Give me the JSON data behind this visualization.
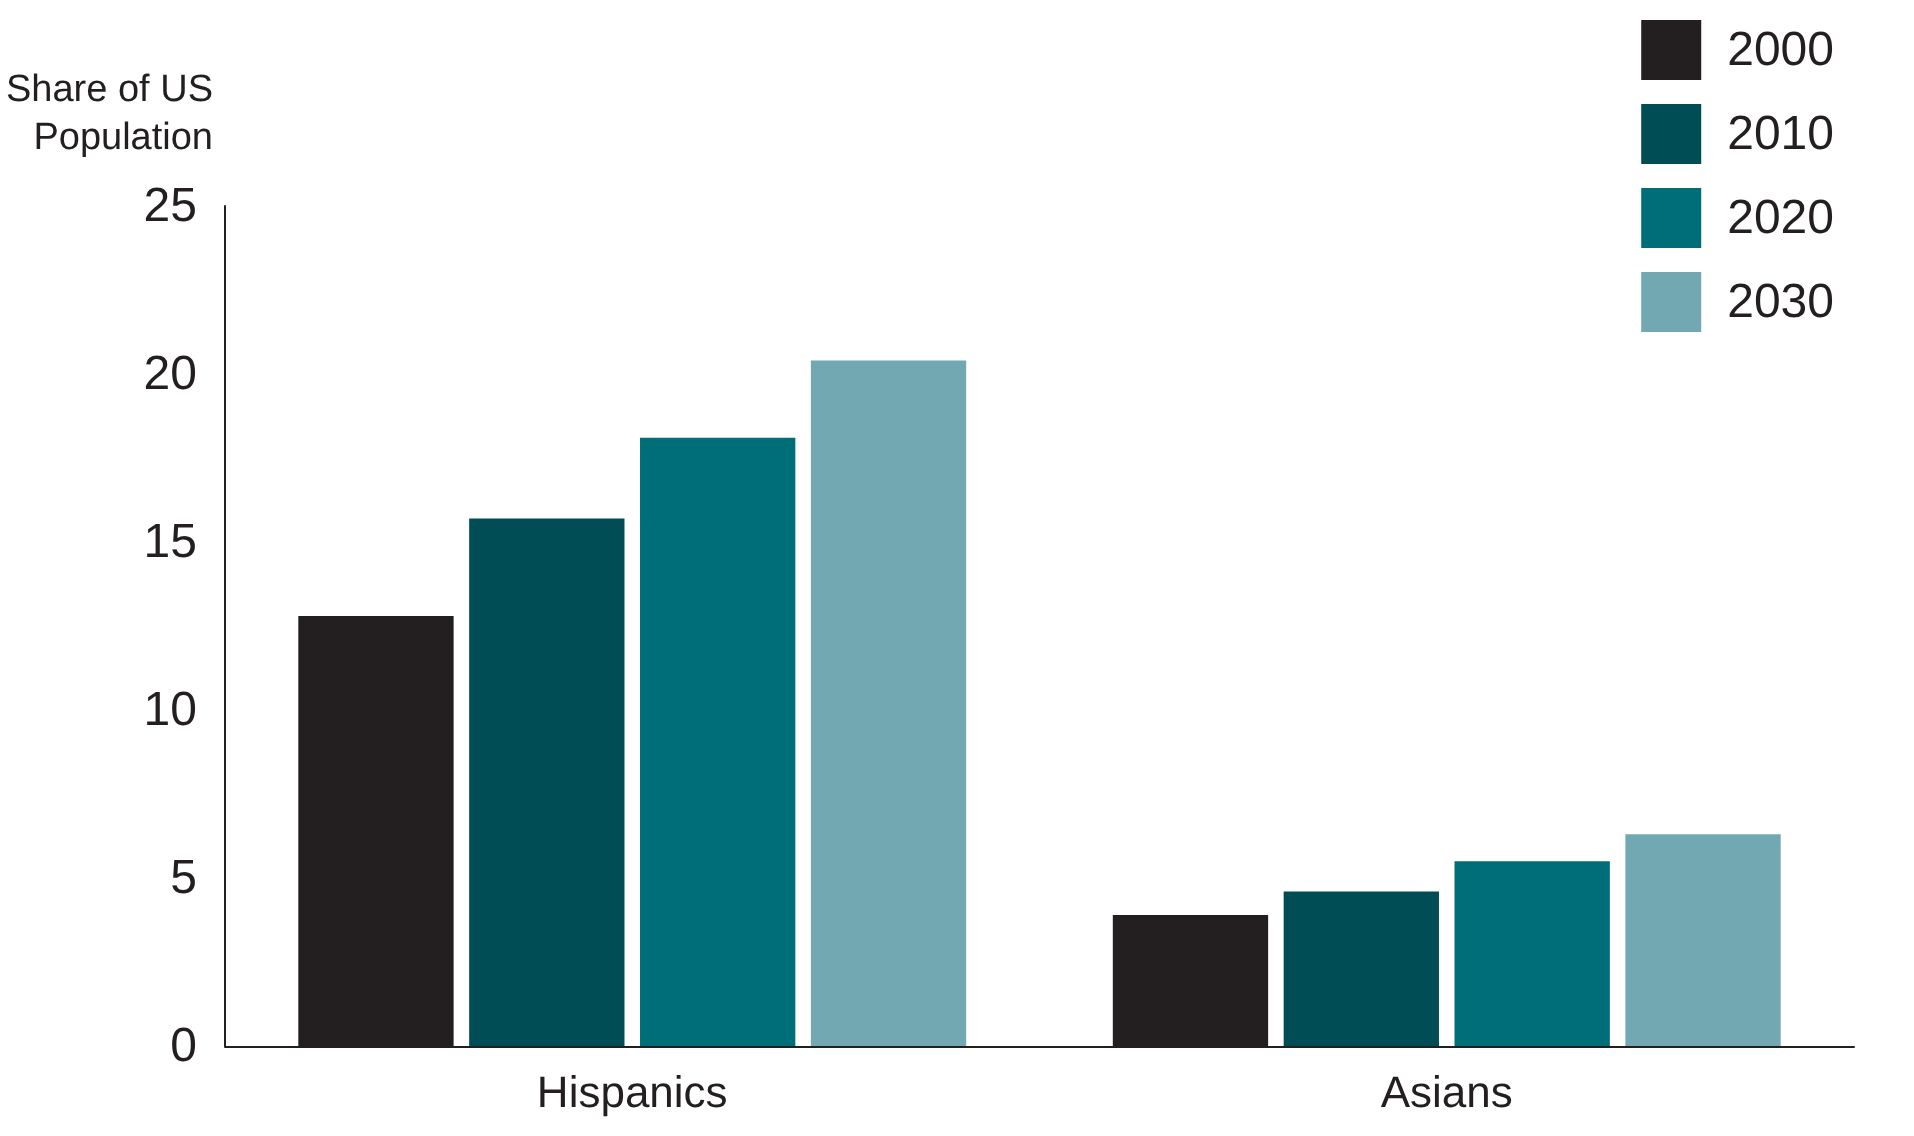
{
  "chart_data": {
    "type": "bar",
    "ylabel": "Share of US\nPopulation",
    "categories": [
      "Hispanics",
      "Asians"
    ],
    "series": [
      {
        "name": "2000",
        "color": "#231f20",
        "values": [
          12.8,
          3.9
        ]
      },
      {
        "name": "2010",
        "color": "#004d56",
        "values": [
          15.7,
          4.6
        ]
      },
      {
        "name": "2020",
        "color": "#006e78",
        "values": [
          18.1,
          5.5
        ]
      },
      {
        "name": "2030",
        "color": "#72a8b2",
        "values": [
          20.4,
          6.3
        ]
      }
    ],
    "ylim": [
      0,
      25
    ],
    "yticks": [
      0,
      5,
      10,
      15,
      20,
      25
    ],
    "grid": false,
    "legend": "top right"
  }
}
